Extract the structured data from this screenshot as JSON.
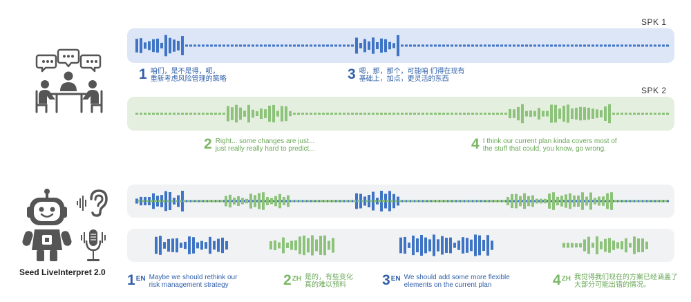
{
  "speakers": {
    "spk1": "SPK 1",
    "spk2": "SPK 2"
  },
  "captions": {
    "c1": {
      "num": "1",
      "text": "咱们，是不是得，呃，\n重新考虑风险管理的策略"
    },
    "c3": {
      "num": "3",
      "text": "嗯，那，那个，可能咱 们得在现有\n基础上，加点，更灵活的东西"
    },
    "c2": {
      "num": "2",
      "text": "Right... some changes are just...\njust really really hard to predict..."
    },
    "c4": {
      "num": "4",
      "text": "I think our current plan kinda covers most of\nthe stuff that could, you know, go wrong."
    }
  },
  "translations": [
    {
      "num": "1",
      "lang": "EN",
      "text": "Maybe we should rethink our\nrisk management strategy",
      "color": "blue"
    },
    {
      "num": "2",
      "lang": "ZH",
      "text": "是的，有些变化\n真的难以预料",
      "color": "green"
    },
    {
      "num": "3",
      "lang": "EN",
      "text": "We should add some more flexible\nelements on the current plan",
      "color": "blue"
    },
    {
      "num": "4",
      "lang": "ZH",
      "text": "我觉得我们现在的方案已经涵盖了\n大部分可能出错的情况。",
      "color": "green"
    }
  ],
  "model": {
    "name": "Seed LiveInterpret 2.0"
  },
  "colors": {
    "blue": "#3f74c4",
    "green": "#8cc27a",
    "panel_blue": "#dde6f7",
    "panel_green": "#e5efdf",
    "panel_gray": "#f1f2f4"
  },
  "icons": {
    "meeting": "people-meeting-icon",
    "robot": "robot-icon",
    "ear": "ear-listening-icon",
    "mic": "microphone-icon"
  }
}
